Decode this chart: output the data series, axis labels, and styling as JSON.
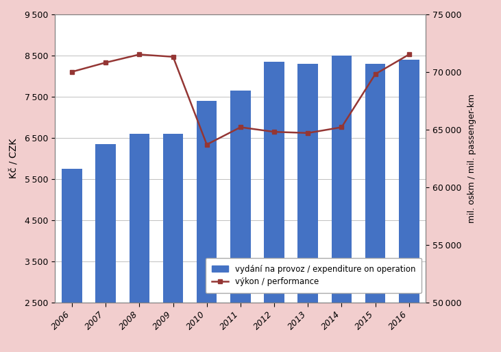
{
  "years": [
    2006,
    2007,
    2008,
    2009,
    2010,
    2011,
    2012,
    2013,
    2014,
    2015,
    2016
  ],
  "bar_values": [
    5750,
    6350,
    6600,
    6600,
    7400,
    7650,
    8350,
    8300,
    8500,
    8300,
    8400
  ],
  "line_values": [
    70000,
    70800,
    71500,
    71300,
    63700,
    65200,
    64800,
    64700,
    65200,
    69800,
    71500
  ],
  "bar_color": "#4472C4",
  "line_color": "#943634",
  "marker_style": "s",
  "marker_facecolor": "#943634",
  "marker_edgecolor": "#943634",
  "ylabel_left": "Kč / CZK",
  "ylabel_right": "mil. oskm / mil. passenger-km",
  "ylim_left": [
    2500,
    9500
  ],
  "ylim_right": [
    50000,
    75000
  ],
  "yticks_left": [
    2500,
    3500,
    4500,
    5500,
    6500,
    7500,
    8500,
    9500
  ],
  "yticks_right": [
    50000,
    55000,
    60000,
    65000,
    70000,
    75000
  ],
  "legend_labels": [
    "vydání na provoz / expenditure on operation",
    "výkon / performance"
  ],
  "background_color": "#F2CECE",
  "plot_background": "#FFFFFF",
  "bar_width": 0.6,
  "grid_color": "#C0C0C0",
  "spine_color": "#808080"
}
